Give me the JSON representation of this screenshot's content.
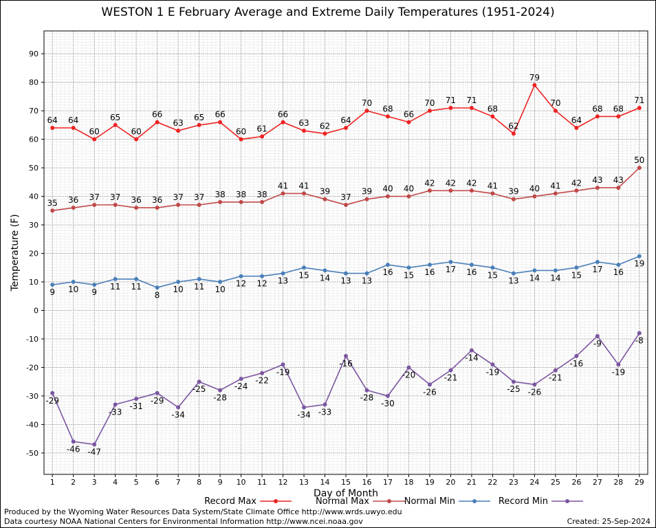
{
  "chart_data": {
    "type": "line",
    "title": "WESTON 1 E February Average and Extreme Daily Temperatures (1951-2024)",
    "xlabel": "Day of Month",
    "ylabel": "Temperature (F)",
    "xlim": [
      0.6,
      29.4
    ],
    "ylim": [
      -57.5,
      98
    ],
    "yticks": [
      -50,
      -40,
      -30,
      -20,
      -10,
      0,
      10,
      20,
      30,
      40,
      50,
      60,
      70,
      80,
      90
    ],
    "x": [
      1,
      2,
      3,
      4,
      5,
      6,
      7,
      8,
      9,
      10,
      11,
      12,
      13,
      14,
      15,
      16,
      17,
      18,
      19,
      20,
      21,
      22,
      23,
      24,
      25,
      26,
      27,
      28,
      29
    ],
    "grid": true,
    "legend_position": "bottom",
    "series": [
      {
        "name": "Record Max",
        "color": "#ee2222",
        "label_side": "above",
        "values": [
          64,
          64,
          60,
          65,
          60,
          66,
          63,
          65,
          66,
          60,
          61,
          66,
          63,
          62,
          64,
          70,
          68,
          66,
          70,
          71,
          71,
          68,
          62,
          79,
          70,
          64,
          68,
          68,
          71
        ]
      },
      {
        "name": "Normal Max",
        "color": "#c04848",
        "label_side": "above",
        "values": [
          35,
          36,
          37,
          37,
          36,
          36,
          37,
          37,
          38,
          38,
          38,
          41,
          41,
          39,
          37,
          39,
          40,
          40,
          42,
          42,
          42,
          41,
          39,
          40,
          41,
          42,
          43,
          43,
          50
        ]
      },
      {
        "name": "Normal Min",
        "color": "#4a7fb8",
        "label_side": "below",
        "values": [
          9,
          10,
          9,
          11,
          11,
          8,
          10,
          11,
          10,
          12,
          12,
          13,
          15,
          14,
          13,
          13,
          16,
          15,
          16,
          17,
          16,
          15,
          13,
          14,
          14,
          15,
          17,
          16,
          19
        ]
      },
      {
        "name": "Record Min",
        "color": "#7a55a0",
        "label_side": "below",
        "values": [
          -29,
          -46,
          -47,
          -33,
          -31,
          -29,
          -34,
          -25,
          -28,
          -24,
          -22,
          -19,
          -34,
          -33,
          -16,
          -28,
          -30,
          -20,
          -26,
          -21,
          -14,
          -19,
          -25,
          -26,
          -21,
          -16,
          -9,
          -19,
          -8
        ]
      }
    ]
  },
  "footer": {
    "producer": "Produced by the Wyoming Water Resources Data System/State Climate Office http://www.wrds.uwyo.edu",
    "courtesy": "Data courtesy NOAA National Centers for Environmental Information http://www.ncei.noaa.gov",
    "created": "Created:  25-Sep-2024"
  }
}
